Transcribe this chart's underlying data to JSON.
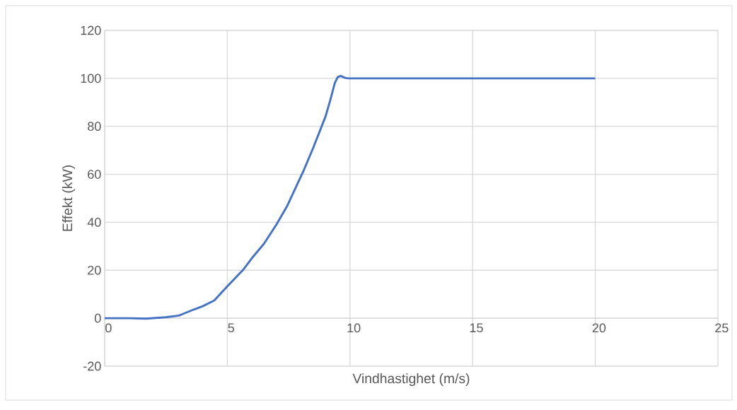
{
  "chart_data": {
    "type": "line",
    "xlabel": "Vindhastighet (m/s)",
    "ylabel": "Effekt (kW)",
    "xlim": [
      0,
      25
    ],
    "xticks": [
      0,
      5,
      10,
      15,
      20,
      25
    ],
    "ylim": [
      -20,
      120
    ],
    "yticks": [
      -20,
      0,
      20,
      40,
      60,
      80,
      100,
      120
    ],
    "grid": true,
    "marker": "none",
    "line_style": "solid",
    "series": [
      {
        "color": "#4472c4",
        "x": [
          0,
          1,
          1.68,
          2.5,
          3.03,
          3.6,
          4.0,
          4.47,
          5.0,
          5.63,
          6.0,
          6.49,
          7.0,
          7.45,
          8.13,
          8.5,
          9.0,
          9.2,
          9.38,
          9.5,
          9.62,
          9.8,
          9.95,
          20
        ],
        "values": [
          0,
          0,
          -0.2,
          0.4,
          1.1,
          3.5,
          5,
          7.4,
          13.3,
          20,
          25,
          31,
          39,
          47,
          62,
          71,
          84,
          91,
          98,
          100.5,
          101,
          100.2,
          100,
          100
        ]
      }
    ]
  }
}
